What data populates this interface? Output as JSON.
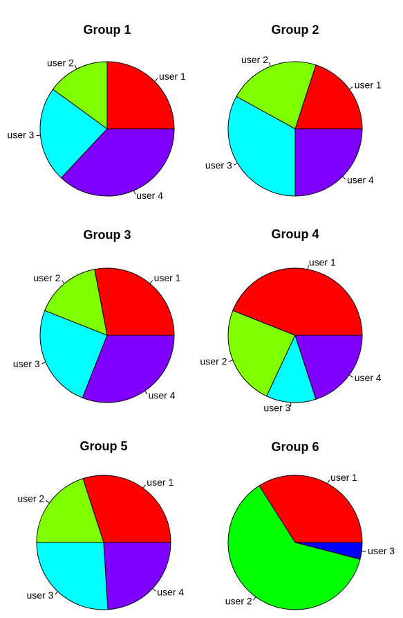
{
  "chart_data": [
    {
      "type": "pie",
      "title": "Group 1",
      "series": [
        {
          "name": "user 1",
          "value": 25,
          "color": "#FF0000"
        },
        {
          "name": "user 2",
          "value": 15,
          "color": "#80FF00"
        },
        {
          "name": "user 3",
          "value": 23,
          "color": "#00FFFF"
        },
        {
          "name": "user 4",
          "value": 37,
          "color": "#8000FF"
        }
      ]
    },
    {
      "type": "pie",
      "title": "Group 2",
      "series": [
        {
          "name": "user 1",
          "value": 20,
          "color": "#FF0000"
        },
        {
          "name": "user 2",
          "value": 22,
          "color": "#80FF00"
        },
        {
          "name": "user 3",
          "value": 33,
          "color": "#00FFFF"
        },
        {
          "name": "user 4",
          "value": 25,
          "color": "#8000FF"
        }
      ]
    },
    {
      "type": "pie",
      "title": "Group 3",
      "series": [
        {
          "name": "user 1",
          "value": 28,
          "color": "#FF0000"
        },
        {
          "name": "user 2",
          "value": 16,
          "color": "#80FF00"
        },
        {
          "name": "user 3",
          "value": 25,
          "color": "#00FFFF"
        },
        {
          "name": "user 4",
          "value": 31,
          "color": "#8000FF"
        }
      ]
    },
    {
      "type": "pie",
      "title": "Group 4",
      "series": [
        {
          "name": "user 1",
          "value": 44,
          "color": "#FF0000"
        },
        {
          "name": "user 2",
          "value": 24,
          "color": "#80FF00"
        },
        {
          "name": "user 3",
          "value": 12,
          "color": "#00FFFF"
        },
        {
          "name": "user 4",
          "value": 20,
          "color": "#8000FF"
        }
      ]
    },
    {
      "type": "pie",
      "title": "Group 5",
      "series": [
        {
          "name": "user 1",
          "value": 30,
          "color": "#FF0000"
        },
        {
          "name": "user 2",
          "value": 20,
          "color": "#80FF00"
        },
        {
          "name": "user 3",
          "value": 26,
          "color": "#00FFFF"
        },
        {
          "name": "user 4",
          "value": 24,
          "color": "#8000FF"
        }
      ]
    },
    {
      "type": "pie",
      "title": "Group 6",
      "series": [
        {
          "name": "user 1",
          "value": 34,
          "color": "#FF0000"
        },
        {
          "name": "user 2",
          "value": 62,
          "color": "#00FF00"
        },
        {
          "name": "user 3",
          "value": 4,
          "color": "#0000FF"
        }
      ]
    }
  ]
}
